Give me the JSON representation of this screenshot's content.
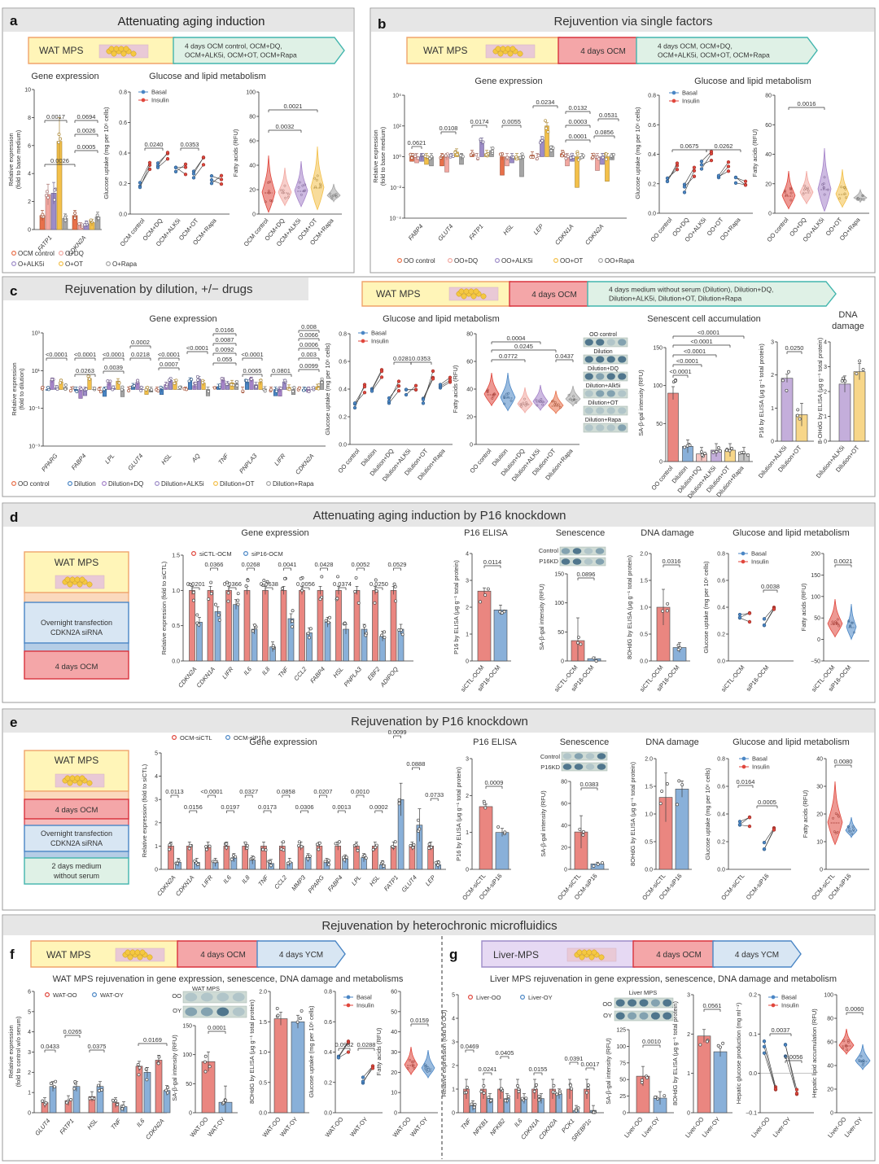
{
  "sections": {
    "a": {
      "letter": "a",
      "title": "Attenuating aging induction"
    },
    "b": {
      "letter": "b",
      "title": "Rejuvention via single factors"
    },
    "c": {
      "letter": "c",
      "title": "Rejuvenation by dilution, +/− drugs"
    },
    "d": {
      "letter": "d",
      "title": "Attenuating aging induction by P16 knockdown"
    },
    "e": {
      "letter": "e",
      "title": "Rejuvenation by P16 knockdown"
    },
    "fg": {
      "title": "Rejuvenation by heterochronic microfluidics"
    },
    "f": {
      "letter": "f"
    },
    "g": {
      "letter": "g"
    }
  },
  "flows": {
    "a": {
      "start": "WAT MPS",
      "steps": [
        "4 days OCM control, OCM+DQ,",
        "OCM+ALK5i, OCM+OT, OCM+Rapa"
      ]
    },
    "b": {
      "start": "WAT MPS",
      "mid": "4 days OCM",
      "steps": [
        "4 days OCM, OCM+DQ,",
        "OCM+ALK5i, OCM+OT, OCM+Rapa"
      ]
    },
    "c": {
      "start": "WAT MPS",
      "mid": "4 days OCM",
      "steps": [
        "4 days medium without serum (Dilution), Dilution+DQ,",
        "Dilution+ALK5i, Dilution+OT, Dilution+Rapa"
      ]
    },
    "d": {
      "start": "WAT MPS",
      "transfect": [
        "Overnight transfection",
        "CDKN2A siRNA"
      ],
      "end": "4 days OCM"
    },
    "e": {
      "start": "WAT MPS",
      "mid": "4 days OCM",
      "transfect": [
        "Overnight transfection",
        "CDKN2A siRNA"
      ],
      "end": [
        "2 days medium",
        "without serum"
      ]
    },
    "f": {
      "start": "WAT MPS",
      "mid": "4 days OCM",
      "end": "4 days YCM"
    },
    "g": {
      "start": "Liver-MPS",
      "mid": "4 days OCM",
      "end": "4 days YCM"
    }
  },
  "subtitles": {
    "gene": "Gene expression",
    "gluc": "Glucose and lipid metabolism",
    "sen": "Senescent cell accumulation",
    "dna": [
      "DNA",
      "damage"
    ],
    "p16": "P16 ELISA",
    "senesc": "Senescence",
    "dnad": "DNA damage",
    "f": "WAT MPS rejuvenation in gene expression, senescence, DNA damage and metabolisms",
    "g": "Liver MPS rejuvenation in gene expression, senescence, DNA damage and metabolism"
  },
  "ylabels": {
    "relexp_base": [
      "Relative expression",
      "(fold to base medium)"
    ],
    "relexp_dil": [
      "Relative expression",
      "(fold to dilution)"
    ],
    "relexp_sictl": "Relative expression (fold to siCTL)",
    "relexp_serum": [
      "Relative expression",
      "(fold to control w/o serum)"
    ],
    "relexp_oo": "Relative expression (fold to OO)",
    "glucose": "Glucose uptake (mg per 10⁶ cells)",
    "fatty": "Fatty acids (RFU)",
    "sabgal": "SA-β-gal intensity (RFU)",
    "p16": "P16 by ELISA (μg g⁻¹ total protein)",
    "ohdg": "8-OHdG by ELISA (μg g⁻¹ total protein)",
    "ohdg2": "8OHdG by ELISA (μg g⁻¹ total protein)",
    "hgp": "Hepatic glucose production (mg ml⁻¹)",
    "hla": "Hepatic lipid accumulation (RFU)"
  },
  "legends": {
    "basal": "Basal",
    "insulin": "Insulin",
    "a": [
      "OCM control",
      "O+DQ",
      "O+ALK5i",
      "O+OT",
      "O+Rapa"
    ],
    "b": [
      "OO control",
      "OO+DQ",
      "OO+ALK5i",
      "OO+OT",
      "OO+Rapa"
    ],
    "c": [
      "OO control",
      "Dilution",
      "Dilution+DQ",
      "Dilution+ALK5i",
      "Dilution+OT",
      "Dilution+Rapa"
    ],
    "d": [
      "siCTL-OCM",
      "siP16-OCM"
    ],
    "e": [
      "OCM-siCTL",
      "OCM-siP16"
    ],
    "f": [
      "WAT-OO",
      "WAT-OY"
    ],
    "g": [
      "Liver-OO",
      "Liver-OY"
    ]
  },
  "colors": {
    "g1": "#e8704a",
    "g2": "#f2a7a0",
    "g3": "#9d8cc8",
    "g4": "#f3c04a",
    "g5": "#a5a5a5",
    "blue": "#4a86c5",
    "red": "#e0463c",
    "purple": "#a583c9"
  },
  "panel_a": {
    "genes": [
      "FATP1",
      "CDKN2A"
    ],
    "yticks": [
      "0",
      "2",
      "4",
      "6",
      "8",
      "10"
    ],
    "pvals": [
      "0.0017",
      "0.0694",
      "0.0026",
      "0.0005",
      "0.0026"
    ],
    "gluc_x": [
      "OCM control",
      "OCM+DQ",
      "OCM+ALK5i",
      "OCM+OT",
      "OCM+Rapa"
    ],
    "gluc_yticks": [
      "0.0",
      "0.2",
      "0.4",
      "0.6",
      "0.8"
    ],
    "gluc_p": [
      "0.0240",
      "0.0353"
    ],
    "fatty_x": [
      "OCM control",
      "OCM+DQ",
      "OCM+ALK5i",
      "OCM+OT",
      "OCM+Rapa"
    ],
    "fatty_yticks": [
      "0",
      "20",
      "40",
      "60",
      "80",
      "100"
    ],
    "fatty_p": [
      "0.0021",
      "0.0032"
    ]
  },
  "panel_b": {
    "genes": [
      "FABP4",
      "GLUT4",
      "FATP1",
      "HSL",
      "LEP",
      "CDKN1A",
      "CDKN2A"
    ],
    "yticks": [
      "10⁻⁴",
      "10⁻²",
      "10⁰",
      "10²",
      "10⁴"
    ],
    "pvals": [
      "0.0621",
      "0.0108",
      "0.0174",
      "0.0055",
      "0.0234",
      "0.0132",
      "0.0531",
      "0.0003",
      "0.0001",
      "0.0856"
    ],
    "gluc_x": [
      "OO control",
      "OO+DQ",
      "OO+ALK5i",
      "OO+OT",
      "OO+Rapa"
    ],
    "gluc_yticks": [
      "0.0",
      "0.2",
      "0.4",
      "0.6",
      "0.8"
    ],
    "gluc_p": [
      "0.0675",
      "0.0262"
    ],
    "fatty_x": [
      "OO control",
      "OO+DQ",
      "OO+ALK5i",
      "OO+OT",
      "OO+Rapa"
    ],
    "fatty_yticks": [
      "0",
      "20",
      "40",
      "60",
      "80"
    ],
    "fatty_p": [
      "0.0016"
    ]
  },
  "panel_c": {
    "genes": [
      "PPARG",
      "FABP4",
      "LPL",
      "GLUT4",
      "HSL",
      "AQ",
      "TNF",
      "PNPLA3",
      "LIFR",
      "CDKN2A"
    ],
    "yticks": [
      "10⁻³",
      "10⁻¹",
      "10¹",
      "10³"
    ],
    "pvals": [
      "<0.0001",
      "<0.0001",
      "<0.0001",
      "0.0002",
      "<0.0001",
      "<0.0001",
      "0.0166",
      "0.0087",
      "0.0092",
      "0.055",
      "<0.0001",
      "0.0263",
      "0.0039",
      "0.0218",
      "0.0007",
      "0.0065",
      "0.0801",
      "0.008",
      "0.0066",
      "0.0006",
      "0.003",
      "0.0099"
    ],
    "gluc_x": [
      "OO control",
      "Dilution",
      "Dilution+DQ",
      "Dilution+ALK5i",
      "Dilution+OT",
      "Dilution+Rapa"
    ],
    "gluc_yticks": [
      "0.0",
      "0.2",
      "0.4",
      "0.6",
      "0.8"
    ],
    "gluc_p": [
      "0.0281",
      "0.0353"
    ],
    "fatty_x": [
      "OO control",
      "Dilution",
      "Dilution+DQ",
      "Dilution+ALK5i",
      "Dilution+OT",
      "Dilution+Rapa"
    ],
    "fatty_yticks": [
      "0",
      "20",
      "40",
      "60",
      "80"
    ],
    "fatty_p": [
      "0.0004",
      "0.0245",
      "0.0772",
      "0.0437"
    ],
    "stain_labels": [
      "OO control",
      "Dilution",
      "Dilution+DQ",
      "Dilution+Alk5i",
      "Dilution+OT",
      "Dilution+Rapa"
    ],
    "sen_x": [
      "OO control",
      "Dilution",
      "Dilution+DQ",
      "Dilution+ALK5i",
      "Dilution+OT",
      "Dilution+Rapa"
    ],
    "sen_yticks": [
      "0",
      "50",
      "100",
      "150"
    ],
    "sen_p": [
      "<0.0001",
      "<0.0001",
      "<0.0001",
      "<0.0001",
      "<0.0001"
    ],
    "p16_x": [
      "Dilution+ALK5i",
      "Dilution+OT"
    ],
    "p16_yticks": [
      "0",
      "1",
      "2",
      "3"
    ],
    "p16_p": [
      "0.0250"
    ],
    "dna_x": [
      "Dilution+ALK5i",
      "Dilution+OT"
    ],
    "dna_yticks": [
      "0",
      "1",
      "2",
      "3",
      "4"
    ]
  },
  "panel_d": {
    "genes": [
      "CDKN2A",
      "CDKN1A",
      "LIFR",
      "IL6",
      "IL8",
      "TNF",
      "CCL2",
      "FABP4",
      "HSL",
      "PNPLA3",
      "EBF2",
      "ADIPOQ"
    ],
    "yticks": [
      "0.0",
      "0.5",
      "1.0",
      "1.5"
    ],
    "pvals_top": [
      "0.0366",
      "0.0268",
      "0.0041",
      "0.0428",
      "0.0052",
      "0.0529"
    ],
    "pvals_bot": [
      "0.0201",
      "0.0366",
      "0.0638",
      "0.0056",
      "0.0374",
      "0.0250"
    ],
    "p16_yticks": [
      "0",
      "1",
      "2",
      "3",
      "4"
    ],
    "p16_p": "0.0114",
    "stain": [
      "Control",
      "P16KD"
    ],
    "sen_yticks": [
      "0",
      "50",
      "100",
      "150"
    ],
    "sen_p": "0.0896",
    "dna_yticks": [
      "0.0",
      "0.5",
      "1.0",
      "1.5",
      "2.0"
    ],
    "dna_p": "0.0316",
    "gluc_yticks": [
      "0.0",
      "0.2",
      "0.4",
      "0.6",
      "0.8"
    ],
    "gluc_p": "0.0038",
    "fatty_yticks": [
      "−50",
      "0",
      "50",
      "100",
      "150",
      "200"
    ],
    "fatty_p": "0.0021"
  },
  "panel_e": {
    "genes": [
      "CDKN2A",
      "CDKN1A",
      "LIFR",
      "IL6",
      "IL8",
      "TNF",
      "CCL2",
      "MMP3",
      "PPARG",
      "FABP4",
      "LPL",
      "HSL",
      "FATP1",
      "GLUT4",
      "LEP"
    ],
    "yticks": [
      "0",
      "1",
      "2",
      "3",
      "4",
      "5"
    ],
    "pvals_top": [
      "0.0113",
      "<0.0001",
      "0.0327",
      "0.0858",
      "0.0207",
      "0.0010"
    ],
    "pvals_bot": [
      "0.0156",
      "0.0197",
      "0.0173",
      "0.0306",
      "0.0013",
      "0.0002"
    ],
    "pvals_hi": [
      "0.0099",
      "0.0888",
      "0.0733"
    ],
    "p16_yticks": [
      "0",
      "1",
      "2",
      "3"
    ],
    "p16_p": "0.0009",
    "stain": [
      "Control",
      "P16KD"
    ],
    "sen_yticks": [
      "0",
      "20",
      "40",
      "60",
      "80"
    ],
    "sen_p": "0.0383",
    "dna_yticks": [
      "0.0",
      "0.5",
      "1.0",
      "1.5",
      "2.0"
    ],
    "gluc_yticks": [
      "0.0",
      "0.2",
      "0.4",
      "0.6",
      "0.8"
    ],
    "gluc_p": [
      "0.0164",
      "0.0005"
    ],
    "fatty_yticks": [
      "0",
      "10",
      "20",
      "30",
      "40"
    ],
    "fatty_p": "0.0080"
  },
  "panel_f": {
    "genes": [
      "GLUT4",
      "FATP1",
      "HSL",
      "TNF",
      "IL6",
      "CDKN2A"
    ],
    "yticks": [
      "0",
      "1",
      "2",
      "3",
      "4",
      "5",
      "6"
    ],
    "pvals": [
      "0.0433",
      "0.0265",
      "0.0375",
      "0.0169"
    ],
    "stain_title": "WAT MPS",
    "stain": [
      "OO",
      "OY"
    ],
    "sen_yticks": [
      "0",
      "50",
      "100",
      "150"
    ],
    "sen_p": "0.0001",
    "dna_yticks": [
      "0.0",
      "0.5",
      "1.0",
      "1.5",
      "2.0"
    ],
    "gluc_yticks": [
      "0.0",
      "0.2",
      "0.4",
      "0.6",
      "0.8"
    ],
    "gluc_p": [
      "0.0982",
      "0.0288"
    ],
    "fatty_yticks": [
      "0",
      "10",
      "20",
      "30",
      "40",
      "50",
      "60"
    ],
    "fatty_p": "0.0159"
  },
  "panel_g": {
    "genes": [
      "TNF",
      "NFKB1",
      "NFKB2",
      "IL6",
      "CDKN1A",
      "CDKN2A",
      "PCK1",
      "SREBP1c"
    ],
    "yticks": [
      "0",
      "1",
      "2",
      "3",
      "4",
      "5"
    ],
    "pvals": [
      "0.0469",
      "0.0241",
      "0.0405",
      "0.0155",
      "0.0391",
      "0.0017"
    ],
    "stain_title": "Liver MPS",
    "stain": [
      "OO",
      "OY"
    ],
    "sen_yticks": [
      "0",
      "25",
      "50",
      "75",
      "100",
      "125"
    ],
    "sen_p": "0.0010",
    "dna_yticks": [
      "0",
      "1",
      "2",
      "3"
    ],
    "dna_p": "0.0561",
    "hgp_yticks": [
      "−0.1",
      "0.0",
      "0.1",
      "0.2"
    ],
    "hgp_p": [
      "0.0037",
      "0.0056"
    ],
    "hla_yticks": [
      "0",
      "20",
      "40",
      "60",
      "80",
      "100"
    ],
    "hla_p": "0.0060"
  }
}
